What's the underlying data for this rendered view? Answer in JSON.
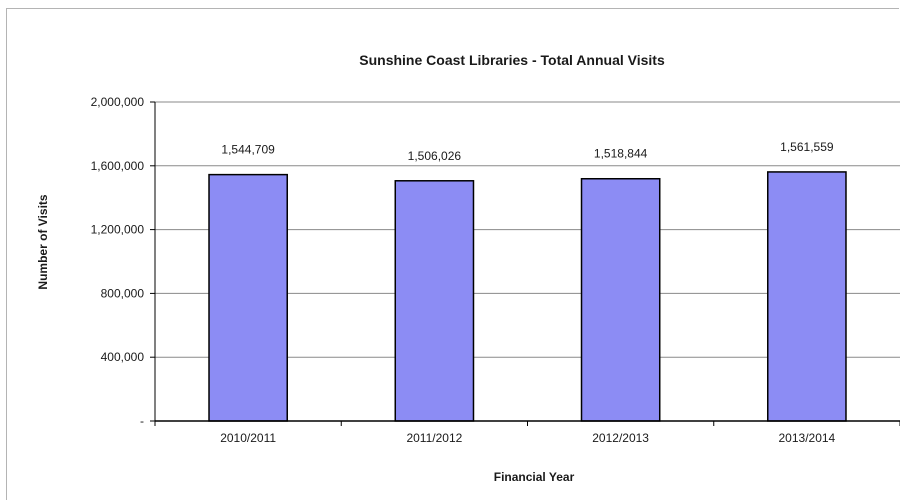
{
  "chart_data": {
    "type": "bar",
    "title": "Sunshine Coast Libraries - Total Annual Visits",
    "xlabel": "Financial Year",
    "ylabel": "Number of Visits",
    "categories": [
      "2010/2011",
      "2011/2012",
      "2012/2013",
      "2013/2014"
    ],
    "values": [
      1544709,
      1506026,
      1518844,
      1561559
    ],
    "value_labels": [
      "1,544,709",
      "1,506,026",
      "1,518,844",
      "1,561,559"
    ],
    "ylim": [
      0,
      2000000
    ],
    "yticks": [
      0,
      400000,
      800000,
      1200000,
      1600000,
      2000000
    ],
    "ytick_labels": [
      "-",
      "400,000",
      "800,000",
      "1,200,000",
      "1,600,000",
      "2,000,000"
    ],
    "grid": true,
    "legend": "none",
    "bar_color": "#8c8cf4",
    "bar_edge_color": "#000000"
  }
}
